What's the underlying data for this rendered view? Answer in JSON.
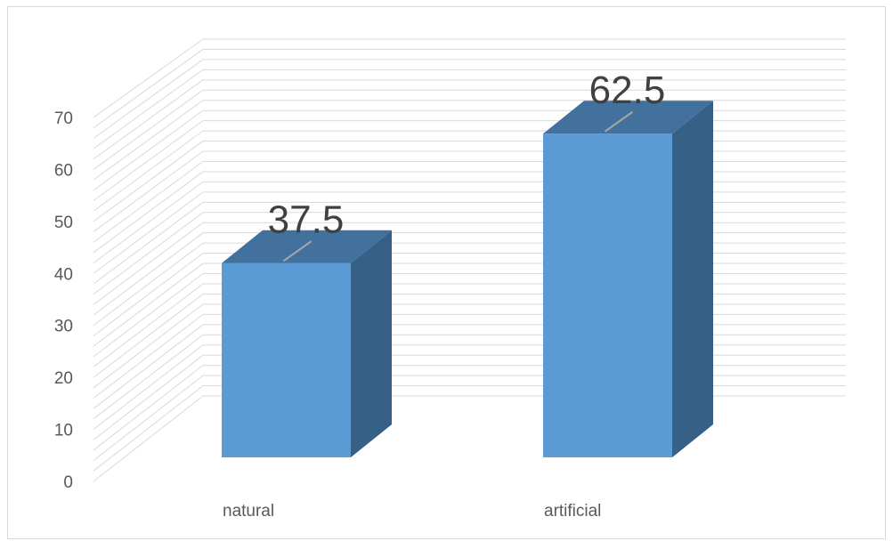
{
  "chart_data": {
    "type": "bar",
    "style": "3d-column",
    "categories": [
      "natural",
      "artificial"
    ],
    "values": [
      37.5,
      62.5
    ],
    "data_labels": [
      "37.5",
      "62.5"
    ],
    "title": "",
    "xlabel": "",
    "ylabel": "",
    "ylim": [
      0,
      70
    ],
    "yticks": [
      "0",
      "10",
      "20",
      "30",
      "40",
      "50",
      "60",
      "70"
    ],
    "grid": true,
    "legend": "none",
    "colors": {
      "bar_front": "#5b9bd5",
      "bar_top": "#41719c",
      "bar_side": "#376087",
      "grid": "#d9d9d9",
      "axis_text": "#595959",
      "label_text": "#404040"
    }
  }
}
